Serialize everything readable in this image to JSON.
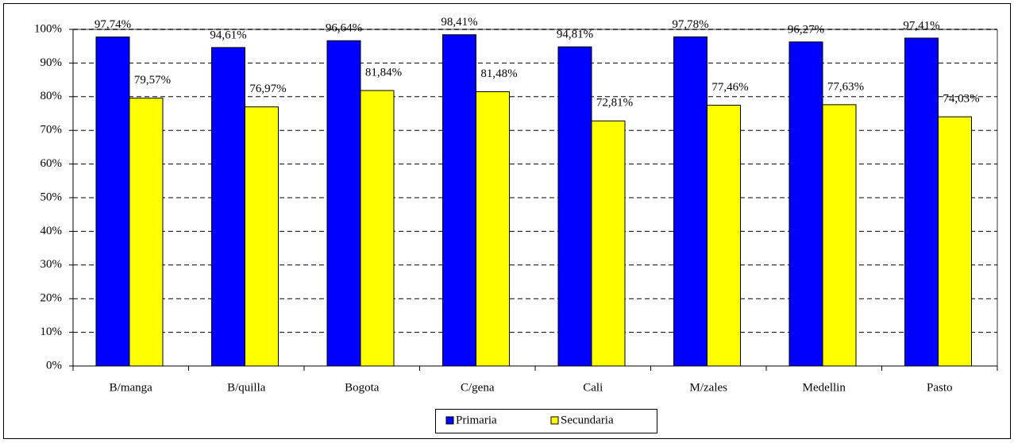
{
  "chart_data": {
    "type": "bar",
    "categories": [
      "B/manga",
      "B/quilla",
      "Bogota",
      "C/gena",
      "Cali",
      "M/zales",
      "Medellin",
      "Pasto"
    ],
    "series": [
      {
        "name": "Primaria",
        "color": "#0000ff",
        "values": [
          97.74,
          94.61,
          96.64,
          98.41,
          94.81,
          97.78,
          96.27,
          97.41
        ],
        "value_labels": [
          "97,74%",
          "94,61%",
          "96,64%",
          "98,41%",
          "94,81%",
          "97,78%",
          "96,27%",
          "97,41%"
        ]
      },
      {
        "name": "Secundaria",
        "color": "#ffff00",
        "values": [
          79.57,
          76.97,
          81.84,
          81.48,
          72.81,
          77.46,
          77.63,
          74.03
        ],
        "value_labels": [
          "79,57%",
          "76,97%",
          "81,84%",
          "81,48%",
          "72,81%",
          "77,46%",
          "77,63%",
          "74,03%"
        ]
      }
    ],
    "ylim": [
      0,
      100
    ],
    "yticks": [
      {
        "value": 0,
        "label": "0%"
      },
      {
        "value": 10,
        "label": "10%"
      },
      {
        "value": 20,
        "label": "20%"
      },
      {
        "value": 30,
        "label": "30%"
      },
      {
        "value": 40,
        "label": "40%"
      },
      {
        "value": 50,
        "label": "50%"
      },
      {
        "value": 60,
        "label": "60%"
      },
      {
        "value": 70,
        "label": "70%"
      },
      {
        "value": 80,
        "label": "80%"
      },
      {
        "value": 90,
        "label": "90%"
      },
      {
        "value": 100,
        "label": "100%"
      }
    ],
    "grid": true,
    "legend": "bottom"
  }
}
